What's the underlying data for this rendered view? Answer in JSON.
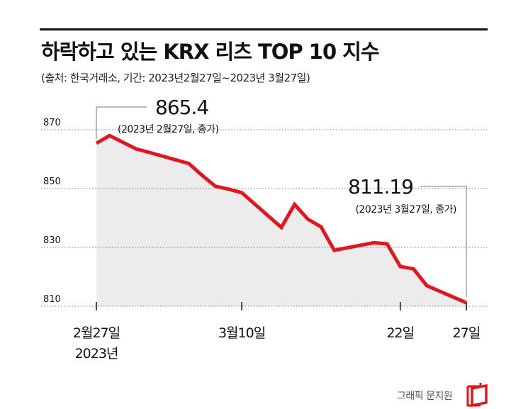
{
  "header": {
    "title": "하락하고 있는 KRX 리츠 TOP 10 지수",
    "subtitle": "(출처: 한국거래소, 기간: 2023년2월27일~2023년 3월27일)"
  },
  "footer": {
    "credit": "그래픽 문지원"
  },
  "colors": {
    "line": "#e2161d",
    "area": "#ececec",
    "grid": "#777777",
    "text": "#111111"
  },
  "chart_data": {
    "type": "area",
    "title": "하락하고 있는 KRX 리츠 TOP 10 지수",
    "ylim": [
      810,
      875
    ],
    "yticks": [
      810,
      830,
      850,
      870
    ],
    "ytick_labels": [
      "810",
      "830",
      "850",
      "870"
    ],
    "xlim": [
      "2023-02-27",
      "2023-03-27"
    ],
    "xticks": [
      {
        "date": "2023-02-27",
        "label": [
          "2월27일",
          "2023년"
        ]
      },
      {
        "date": "2023-03-10",
        "label": [
          "3월10일"
        ]
      },
      {
        "date": "2023-03-22",
        "label": [
          "22일"
        ]
      },
      {
        "date": "2023-03-27",
        "label": [
          "27일"
        ]
      }
    ],
    "x": [
      "2023-02-27",
      "2023-02-28",
      "2023-03-02",
      "2023-03-03",
      "2023-03-06",
      "2023-03-07",
      "2023-03-08",
      "2023-03-09",
      "2023-03-10",
      "2023-03-13",
      "2023-03-14",
      "2023-03-15",
      "2023-03-16",
      "2023-03-17",
      "2023-03-20",
      "2023-03-21",
      "2023-03-22",
      "2023-03-23",
      "2023-03-24",
      "2023-03-27"
    ],
    "series": [
      {
        "values": [
          865.4,
          868.0,
          863.5,
          862.3,
          858.5,
          854.5,
          850.8,
          849.8,
          848.6,
          836.8,
          844.6,
          839.6,
          837.0,
          829.0,
          831.6,
          831.2,
          823.5,
          822.7,
          817.0,
          811.19
        ]
      }
    ],
    "annotations": [
      {
        "date": "2023-02-27",
        "value": "865.4",
        "note": "(2023년 2월27일, 종가)"
      },
      {
        "date": "2023-03-27",
        "value": "811.19",
        "note": "(2023년 3월27일, 종가)"
      }
    ]
  }
}
